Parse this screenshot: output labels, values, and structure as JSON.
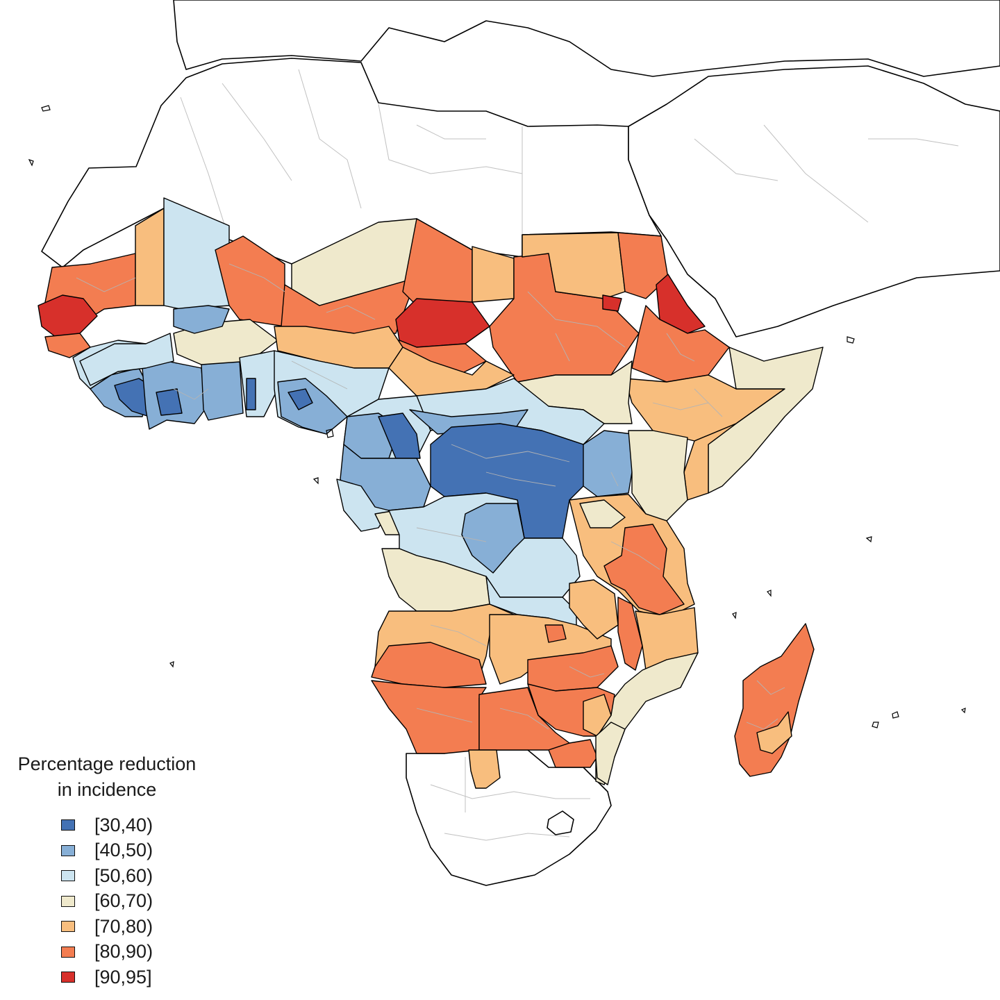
{
  "legend": {
    "title_line1": "Percentage reduction",
    "title_line2": "in incidence",
    "items": [
      {
        "label": "[30,40)",
        "color": "#4472b4"
      },
      {
        "label": "[40,50)",
        "color": "#87afd6"
      },
      {
        "label": "[50,60)",
        "color": "#cce4f0"
      },
      {
        "label": "[60,70)",
        "color": "#efe9cc"
      },
      {
        "label": "[70,80)",
        "color": "#f8be7e"
      },
      {
        "label": "[80,90)",
        "color": "#f37d51"
      },
      {
        "label": "[90,95]",
        "color": "#d7302b"
      }
    ]
  },
  "map_style": {
    "no_data_fill": "#ffffff",
    "country_border": "#000000",
    "subregion_border": "#b4b4b4"
  }
}
